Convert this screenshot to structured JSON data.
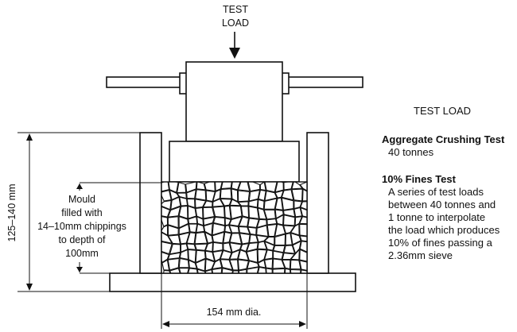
{
  "top_label": {
    "line1": "TEST",
    "line2": "LOAD"
  },
  "mould_note": {
    "lines": [
      "Mould",
      "filled with",
      "14–10mm chippings",
      "to depth of",
      "100mm"
    ]
  },
  "height_dimension": "125–140 mm",
  "diameter_dimension": "154 mm dia.",
  "panel": {
    "heading": "TEST LOAD",
    "crushing": {
      "title": "Aggregate Crushing Test",
      "value": "40 tonnes"
    },
    "fines": {
      "title": "10% Fines Test",
      "lines": [
        "A series of test loads",
        "between 40 tonnes and",
        "1 tonne to interpolate",
        "the load which produces",
        "10% of fines passing a",
        "2.36mm sieve"
      ]
    }
  }
}
